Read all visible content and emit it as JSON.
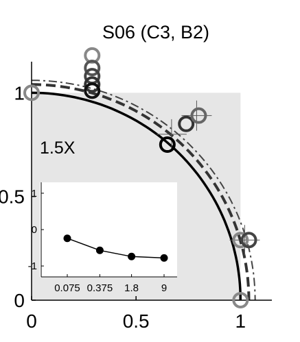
{
  "chart_data": {
    "type": "line",
    "title": "S06 (C3, B2)",
    "annotation": "1.5X",
    "main": {
      "xlim": [
        0,
        1.15
      ],
      "ylim": [
        0,
        1.15
      ],
      "x_ticks": [
        "0",
        "0.5",
        "1"
      ],
      "y_ticks": [
        "0",
        "0.5",
        "1"
      ],
      "x_tick_values": [
        0,
        0.5,
        1
      ],
      "y_tick_values": [
        0,
        0.5,
        1
      ],
      "shaded_region": {
        "x": [
          0,
          1
        ],
        "y": [
          0,
          1
        ],
        "color": "#e6e6e6"
      },
      "curves": [
        {
          "style": "solid",
          "color": "#000000",
          "radius_x": 1.0,
          "radius_y": 1.0
        },
        {
          "style": "dashed",
          "color": "#333333",
          "radius_x": 1.04,
          "radius_y": 1.04
        },
        {
          "style": "dashdot",
          "color": "#444444",
          "radius_x": 1.07,
          "radius_y": 1.06
        }
      ],
      "markers": [
        {
          "x": 0.0,
          "y": 1.0,
          "color": "#888888"
        },
        {
          "x": 0.29,
          "y": 1.18,
          "color": "#888888"
        },
        {
          "x": 0.29,
          "y": 1.12,
          "color": "#555555"
        },
        {
          "x": 0.29,
          "y": 1.08,
          "color": "#444444"
        },
        {
          "x": 0.29,
          "y": 1.04,
          "color": "#333333"
        },
        {
          "x": 0.29,
          "y": 1.01,
          "color": "#111111"
        },
        {
          "x": 0.65,
          "y": 0.75,
          "color": "#000000"
        },
        {
          "x": 0.74,
          "y": 0.85,
          "color": "#333333"
        },
        {
          "x": 0.8,
          "y": 0.89,
          "color": "#666666"
        },
        {
          "x": 1.0,
          "y": 0.0,
          "color": "#888888"
        },
        {
          "x": 1.0,
          "y": 0.29,
          "color": "#888888"
        },
        {
          "x": 1.04,
          "y": 0.29,
          "color": "#444444"
        }
      ],
      "crosses": [
        {
          "x": 0.79,
          "y": 0.89
        },
        {
          "x": 0.67,
          "y": 0.8
        },
        {
          "x": 1.02,
          "y": 0.29
        }
      ]
    },
    "inset": {
      "x_ticks": [
        "0.075",
        "0.375",
        "1.8",
        "9"
      ],
      "x_values": [
        0.075,
        0.375,
        1.8,
        9
      ],
      "y_ticks": [
        "1",
        "0",
        "-1"
      ],
      "y_tick_values": [
        1,
        0,
        -1
      ],
      "ylim": [
        -1.3,
        1.3
      ],
      "x_scale": "log",
      "series": [
        {
          "x": [
            0.075,
            0.375,
            1.8,
            9
          ],
          "y": [
            -0.24,
            -0.57,
            -0.74,
            -0.78
          ]
        }
      ]
    }
  }
}
